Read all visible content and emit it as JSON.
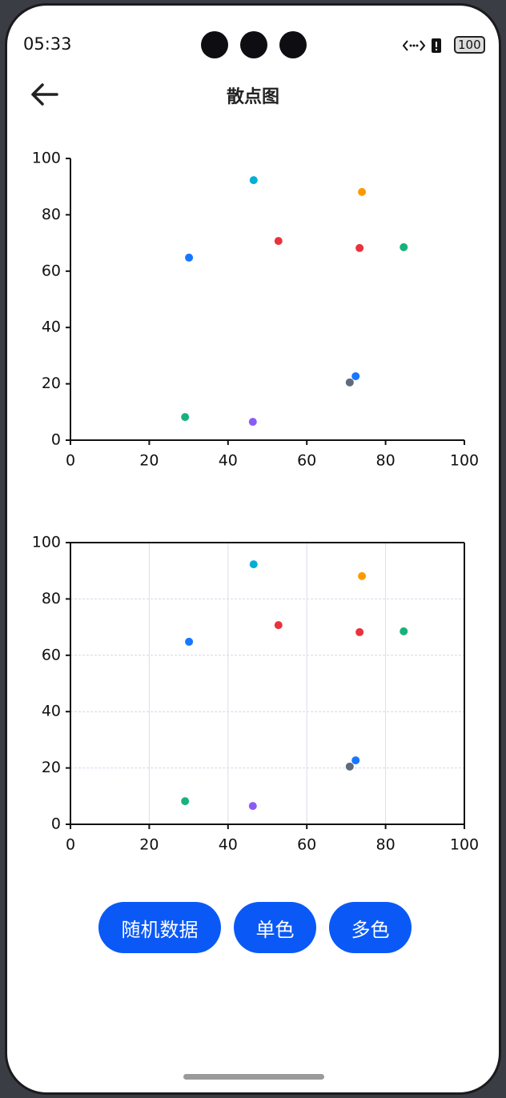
{
  "status_bar": {
    "time": "05:33",
    "battery": "100"
  },
  "header": {
    "title": "散点图"
  },
  "chart_data": [
    {
      "type": "scatter",
      "x": [
        30.1,
        46.5,
        74,
        52.8,
        73.4,
        84.6,
        72.4,
        70.9,
        29.1,
        46.3
      ],
      "values": [
        64.8,
        92.3,
        88.1,
        70.7,
        68.2,
        68.5,
        22.7,
        20.5,
        8.2,
        6.5
      ],
      "colors": [
        "#1677ff",
        "#00aed6",
        "#ff9a00",
        "#e8323c",
        "#e8323c",
        "#17b27a",
        "#1677ff",
        "#5f6b7a",
        "#17b27a",
        "#8a5cf5"
      ],
      "xlim": [
        0,
        100
      ],
      "ylim": [
        0,
        100
      ],
      "xticks": [
        0,
        20,
        40,
        60,
        80,
        100
      ],
      "yticks": [
        0,
        20,
        40,
        60,
        80,
        100
      ],
      "grid": false,
      "frame": false
    },
    {
      "type": "scatter",
      "x": [
        30.1,
        46.5,
        74,
        52.8,
        73.4,
        84.6,
        72.4,
        70.9,
        29.1,
        46.3
      ],
      "values": [
        64.8,
        92.3,
        88.1,
        70.7,
        68.2,
        68.5,
        22.7,
        20.5,
        8.2,
        6.5
      ],
      "colors": [
        "#1677ff",
        "#00aed6",
        "#ff9a00",
        "#e8323c",
        "#e8323c",
        "#17b27a",
        "#1677ff",
        "#5f6b7a",
        "#17b27a",
        "#8a5cf5"
      ],
      "xlim": [
        0,
        100
      ],
      "ylim": [
        0,
        100
      ],
      "xticks": [
        0,
        20,
        40,
        60,
        80,
        100
      ],
      "yticks": [
        0,
        20,
        40,
        60,
        80,
        100
      ],
      "grid": true,
      "frame": true
    }
  ],
  "buttons": [
    "随机数据",
    "单色",
    "多色"
  ]
}
